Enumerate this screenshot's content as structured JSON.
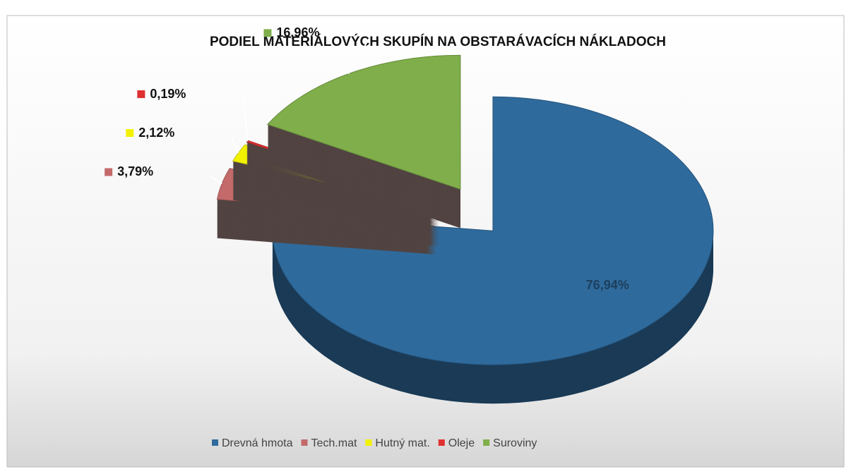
{
  "chart_data": {
    "type": "pie",
    "title": "PODIEL MATERIÁLOVÝCH SKUPÍN NA OBSTARÁVACÍCH NÁKLADOCH",
    "categories": [
      "Drevná hmota",
      "Tech.mat",
      "Hutný mat.",
      "Oleje",
      "Suroviny"
    ],
    "values": [
      76.94,
      3.79,
      2.12,
      0.19,
      16.96
    ],
    "value_labels": [
      "76,94%",
      "3,79%",
      "2,12%",
      "0,19%",
      "16,96%"
    ],
    "colors": [
      "#2f6a9c",
      "#c46a6a",
      "#f2f200",
      "#e03030",
      "#7fae4a"
    ],
    "legend": "bottom"
  }
}
